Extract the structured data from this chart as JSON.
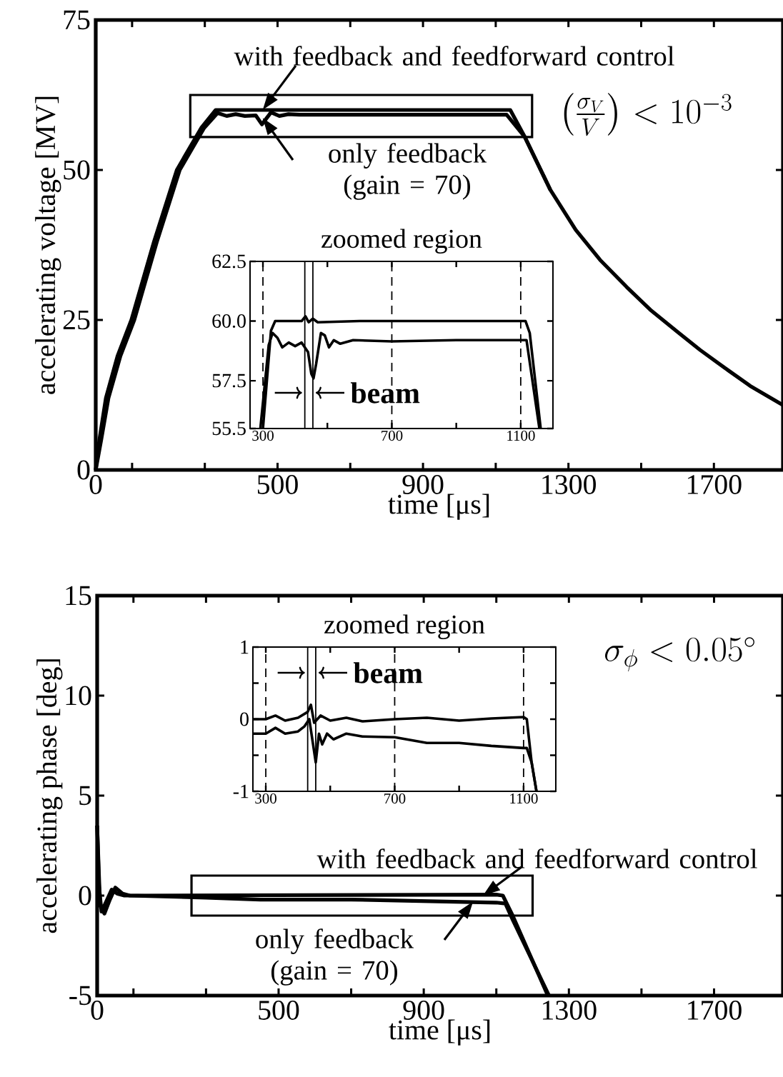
{
  "chart_data": [
    {
      "type": "line",
      "xlabel": "time [μs]",
      "ylabel": "accelerating voltage [MV]",
      "xlim": [
        0,
        1890
      ],
      "ylim": [
        0,
        75
      ],
      "xticks": [
        0,
        {
          "value": 100,
          "label": null
        },
        {
          "value": 300,
          "label": null
        },
        500,
        {
          "value": 700,
          "label": null
        },
        900,
        {
          "value": 1100,
          "label": null
        },
        1300,
        {
          "value": 1500,
          "label": null
        },
        1700
      ],
      "yticks": [
        0,
        25,
        50,
        75
      ],
      "marker": "none",
      "line_style": "solid",
      "series": [
        {
          "color": "#000000",
          "x": [
            0,
            10,
            28,
            60,
            98,
            160,
            223,
            290,
            330,
            1140,
            1180,
            1250,
            1320,
            1387,
            1460,
            1525,
            1600,
            1662,
            1730,
            1800,
            1890
          ],
          "values": [
            0,
            5,
            12,
            19,
            25,
            38,
            50,
            57,
            60,
            60,
            55.5,
            46.7,
            40,
            35,
            30.5,
            26.7,
            23,
            20,
            17,
            14,
            10.8
          ]
        },
        {
          "color": "#000000",
          "x": [
            0,
            15,
            35,
            68,
            106,
            168,
            231,
            298,
            335,
            360,
            385,
            410,
            440,
            457,
            482,
            505,
            530,
            560,
            1130,
            1180,
            1250
          ],
          "values": [
            0,
            5,
            12,
            19,
            25,
            38,
            50,
            57,
            59.5,
            59,
            59.3,
            59,
            59.1,
            57.6,
            59.6,
            59,
            59.3,
            59.2,
            59.2,
            55.5,
            46.7
          ]
        }
      ],
      "annotations": [
        {
          "text": "with feedback and feedforward control",
          "x": 459,
          "y": 60
        },
        {
          "text": "only feedback (gain = 70)",
          "x": 459,
          "y": 58.7
        },
        "\\left(\\frac{\\sigma_V}{V}\\right) < 10^{-3}"
      ]
    },
    {
      "type": "line",
      "title": "zoomed region",
      "xlim": [
        260,
        1200
      ],
      "ylim": [
        55.5,
        62.5
      ],
      "xticks": [
        300,
        {
          "value": 500,
          "label": null
        },
        700,
        {
          "value": 900,
          "label": null
        },
        1100
      ],
      "yticks": [
        55.5,
        57.5,
        {
          "value": 60,
          "label": "60.0"
        },
        62.5
      ],
      "marker": "none",
      "line_style": "solid",
      "series": [
        {
          "color": "#000000",
          "x": [
            300,
            325,
            338,
            420,
            432,
            442,
            455,
            470,
            600,
            800,
            1000,
            1115,
            1128,
            1162
          ],
          "values": [
            55.5,
            59.6,
            60,
            60,
            60.2,
            59.95,
            60.1,
            59.95,
            60,
            60,
            60,
            60,
            59.5,
            55.5
          ]
        },
        {
          "color": "#000000",
          "x": [
            292,
            318,
            330,
            345,
            360,
            380,
            400,
            420,
            440,
            450,
            457,
            465,
            480,
            492,
            505,
            520,
            540,
            580,
            700,
            900,
            1118,
            1158
          ],
          "values": [
            55.5,
            59,
            59.5,
            59.3,
            58.9,
            59.1,
            58.95,
            59.1,
            58.7,
            57.8,
            57.6,
            58.2,
            59.5,
            59.4,
            58.9,
            59.2,
            59.05,
            59.2,
            59.15,
            59.2,
            59.2,
            55.5
          ]
        }
      ],
      "ref_lines": [
        {
          "axis": "x",
          "value": 300,
          "line_style": "dashed"
        },
        {
          "axis": "x",
          "value": 700,
          "line_style": "dashed"
        },
        {
          "axis": "x",
          "value": 1100,
          "line_style": "dashed"
        },
        {
          "axis": "x",
          "value": 430,
          "line_style": "solid"
        },
        {
          "axis": "x",
          "value": 455,
          "line_style": "solid"
        }
      ],
      "annotations": [
        "beam"
      ]
    },
    {
      "type": "line",
      "xlabel": "time [μs]",
      "ylabel": "accelerating phase [deg]",
      "xlim": [
        0,
        1890
      ],
      "ylim": [
        -5,
        15
      ],
      "xticks": [
        0,
        {
          "value": 100,
          "label": null
        },
        {
          "value": 300,
          "label": null
        },
        500,
        {
          "value": 700,
          "label": null
        },
        900,
        {
          "value": 1100,
          "label": null
        },
        1300,
        {
          "value": 1500,
          "label": null
        },
        1700
      ],
      "yticks": [
        -5,
        0,
        5,
        10,
        15
      ],
      "marker": "none",
      "line_style": "solid",
      "series": [
        {
          "color": "#000000",
          "x": [
            0,
            5,
            12,
            25,
            40,
            55,
            75,
            1100,
            1118,
            1145,
            1242
          ],
          "values": [
            3.5,
            0.5,
            -0.8,
            -0.3,
            0.3,
            0.1,
            0,
            0.05,
            0,
            -1,
            -5
          ]
        },
        {
          "color": "#000000",
          "x": [
            0,
            8,
            20,
            35,
            50,
            70,
            90,
            300,
            450,
            700,
            1100,
            1125,
            1145,
            1245
          ],
          "values": [
            3.5,
            -0.5,
            -0.9,
            -0.2,
            0.4,
            0.1,
            0,
            -0.1,
            -0.2,
            -0.2,
            -0.35,
            -0.4,
            -1.2,
            -5
          ]
        }
      ],
      "annotations": [
        {
          "text": "with feedback and feedforward control",
          "x": 1063,
          "y": 0
        },
        {
          "text": "only feedback (gain = 70)",
          "x": 1036,
          "y": -0.3
        },
        "\\sigma_{\\phi} < 0.05^{\\circ}"
      ]
    },
    {
      "type": "line",
      "title": "zoomed region",
      "xlim": [
        260,
        1200
      ],
      "ylim": [
        -1,
        1
      ],
      "xticks": [
        300,
        {
          "value": 500,
          "label": null
        },
        700,
        {
          "value": 900,
          "label": null
        },
        1100
      ],
      "yticks": [
        -1,
        {
          "value": -0.5,
          "label": null
        },
        0,
        {
          "value": 0.5,
          "label": null
        },
        1
      ],
      "marker": "none",
      "line_style": "solid",
      "series": [
        {
          "color": "#000000",
          "x": [
            260,
            300,
            330,
            360,
            400,
            430,
            440,
            450,
            470,
            500,
            550,
            600,
            700,
            800,
            900,
            1000,
            1100,
            1110,
            1125,
            1140
          ],
          "values": [
            0,
            0,
            0.05,
            -0.02,
            0.02,
            0.1,
            0.2,
            -0.05,
            0.05,
            -0.02,
            0.02,
            -0.03,
            0,
            0.02,
            -0.02,
            0.01,
            0.03,
            0,
            -0.6,
            -1
          ]
        },
        {
          "color": "#000000",
          "x": [
            260,
            300,
            330,
            360,
            400,
            420,
            435,
            445,
            455,
            465,
            475,
            490,
            510,
            550,
            600,
            700,
            800,
            900,
            1000,
            1100,
            1110,
            1125,
            1140
          ],
          "values": [
            -0.2,
            -0.2,
            -0.12,
            -0.2,
            -0.17,
            -0.1,
            0,
            -0.3,
            -0.6,
            -0.2,
            -0.35,
            -0.2,
            -0.28,
            -0.2,
            -0.24,
            -0.25,
            -0.33,
            -0.33,
            -0.37,
            -0.4,
            -0.4,
            -0.6,
            -1
          ]
        }
      ],
      "ref_lines": [
        {
          "axis": "x",
          "value": 300,
          "line_style": "dashed"
        },
        {
          "axis": "x",
          "value": 700,
          "line_style": "dashed"
        },
        {
          "axis": "x",
          "value": 1100,
          "line_style": "dashed"
        },
        {
          "axis": "x",
          "value": 430,
          "line_style": "solid"
        },
        {
          "axis": "x",
          "value": 455,
          "line_style": "solid"
        }
      ],
      "annotations": [
        "beam"
      ]
    }
  ]
}
